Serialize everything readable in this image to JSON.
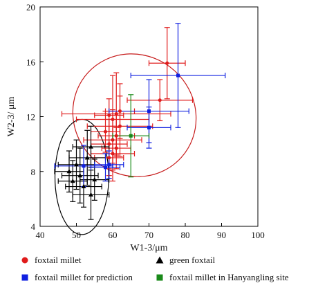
{
  "chart_data": {
    "type": "scatter",
    "xlabel": "W1-3/μm",
    "ylabel": "W2-3/ μm",
    "xlim": [
      40,
      100
    ],
    "ylim": [
      4,
      20
    ],
    "xticks": [
      "40",
      "50",
      "60",
      "70",
      "80",
      "90",
      "100"
    ],
    "yticks": [
      "4",
      "8",
      "12",
      "16",
      "20"
    ],
    "grid": false,
    "legend_position": "bottom",
    "series": [
      {
        "name": "foxtail millet",
        "marker": "circle",
        "color": "#e01b1b",
        "points": [
          {
            "x": 75,
            "y": 15.9,
            "xerr": 5,
            "yerr": 2.6
          },
          {
            "x": 73,
            "y": 13.2,
            "xerr": 9,
            "yerr": 1.5
          },
          {
            "x": 62,
            "y": 12.4,
            "xerr": 4,
            "yerr": 2.0
          },
          {
            "x": 61,
            "y": 12.2,
            "xerr": 15,
            "yerr": 3.0
          },
          {
            "x": 59,
            "y": 12.1,
            "xerr": 4,
            "yerr": 1.2
          },
          {
            "x": 60,
            "y": 11.8,
            "xerr": 10,
            "yerr": 3.2
          },
          {
            "x": 62,
            "y": 11.3,
            "xerr": 9,
            "yerr": 2.2
          },
          {
            "x": 58,
            "y": 10.9,
            "xerr": 4,
            "yerr": 1.5
          },
          {
            "x": 61,
            "y": 10.6,
            "xerr": 5,
            "yerr": 1.5
          },
          {
            "x": 60,
            "y": 10.3,
            "xerr": 8,
            "yerr": 2.2
          },
          {
            "x": 59,
            "y": 10.0,
            "xerr": 5,
            "yerr": 1.8
          },
          {
            "x": 61,
            "y": 9.7,
            "xerr": 4,
            "yerr": 1.5
          },
          {
            "x": 60,
            "y": 9.3,
            "xerr": 6,
            "yerr": 2.0
          },
          {
            "x": 59,
            "y": 9.0,
            "xerr": 4,
            "yerr": 1.3
          }
        ]
      },
      {
        "name": "green foxtail",
        "marker": "triangle",
        "color": "#000000",
        "points": [
          {
            "x": 54,
            "y": 9.8,
            "xerr": 5,
            "yerr": 1.5
          },
          {
            "x": 53,
            "y": 9.0,
            "xerr": 5,
            "yerr": 2.0
          },
          {
            "x": 50,
            "y": 8.5,
            "xerr": 5,
            "yerr": 1.8
          },
          {
            "x": 48,
            "y": 8.0,
            "xerr": 4,
            "yerr": 1.5
          },
          {
            "x": 51,
            "y": 7.7,
            "xerr": 5,
            "yerr": 2.0
          },
          {
            "x": 55,
            "y": 7.4,
            "xerr": 4,
            "yerr": 1.5
          },
          {
            "x": 49,
            "y": 7.3,
            "xerr": 4,
            "yerr": 1.5
          },
          {
            "x": 52,
            "y": 6.9,
            "xerr": 5,
            "yerr": 1.5
          },
          {
            "x": 54,
            "y": 6.3,
            "xerr": 5,
            "yerr": 1.8
          }
        ]
      },
      {
        "name": "foxtail millet for prediction",
        "marker": "square",
        "color": "#1020e0",
        "points": [
          {
            "x": 78,
            "y": 15.0,
            "xerr": 13,
            "yerr": 3.8
          },
          {
            "x": 70,
            "y": 12.4,
            "xerr": 11,
            "yerr": 2.3
          },
          {
            "x": 70,
            "y": 11.2,
            "xerr": 6,
            "yerr": 1.5
          },
          {
            "x": 59,
            "y": 8.5,
            "xerr": 4,
            "yerr": 1.0
          },
          {
            "x": 52,
            "y": 8.4,
            "xerr": 8,
            "yerr": 1.5
          },
          {
            "x": 58,
            "y": 8.3,
            "xerr": 4,
            "yerr": 1.0
          }
        ]
      },
      {
        "name": "foxtail millet in Hanyangling site",
        "marker": "square",
        "color": "#1a8a1a",
        "points": [
          {
            "x": 65,
            "y": 10.6,
            "xerr": 5,
            "yerr": 3.0
          }
        ]
      }
    ],
    "ellipses": [
      {
        "color": "#c61a1a",
        "cx": 66,
        "cy": 12.1,
        "rx": 16.5,
        "ry": 4.6,
        "angle": -48
      },
      {
        "color": "#000000",
        "cx": 51.5,
        "cy": 7.6,
        "rx": 7.4,
        "ry": 4.2,
        "angle": 0
      }
    ]
  }
}
